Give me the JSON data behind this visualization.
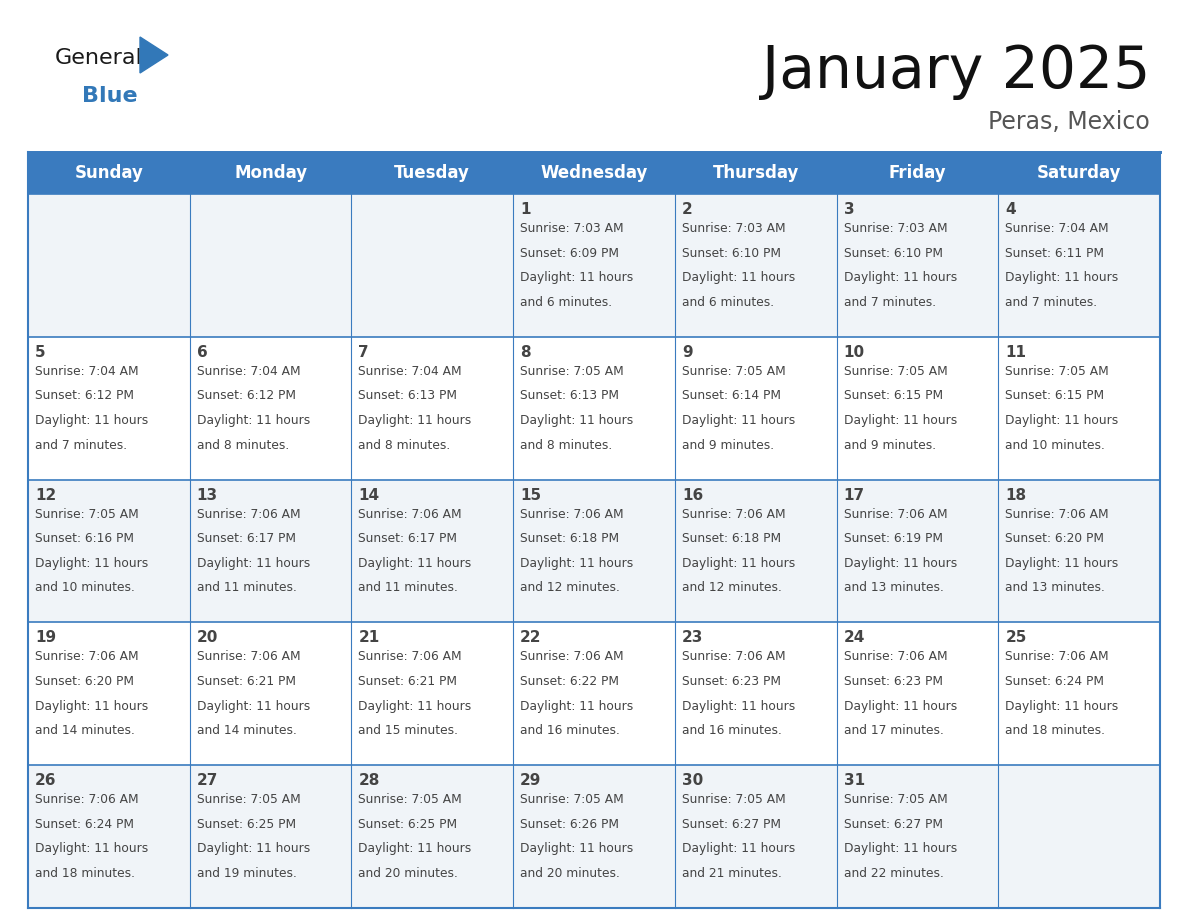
{
  "title": "January 2025",
  "subtitle": "Peras, Mexico",
  "header_color": "#3A7BBF",
  "header_text_color": "#FFFFFF",
  "header_font_size": 12,
  "day_names": [
    "Sunday",
    "Monday",
    "Tuesday",
    "Wednesday",
    "Thursday",
    "Friday",
    "Saturday"
  ],
  "title_font_size": 42,
  "subtitle_font_size": 17,
  "cell_text_color": "#444444",
  "day_number_font_size": 11,
  "info_font_size": 8.8,
  "row0_color": "#F0F4F8",
  "row1_color": "#FFFFFF",
  "border_color": "#3A7BBF",
  "logo_general_color": "#1A1A1A",
  "logo_blue_color": "#3278B8",
  "weeks": [
    {
      "days": [
        {
          "day": null,
          "info": ""
        },
        {
          "day": null,
          "info": ""
        },
        {
          "day": null,
          "info": ""
        },
        {
          "day": 1,
          "info": "Sunrise: 7:03 AM\nSunset: 6:09 PM\nDaylight: 11 hours\nand 6 minutes."
        },
        {
          "day": 2,
          "info": "Sunrise: 7:03 AM\nSunset: 6:10 PM\nDaylight: 11 hours\nand 6 minutes."
        },
        {
          "day": 3,
          "info": "Sunrise: 7:03 AM\nSunset: 6:10 PM\nDaylight: 11 hours\nand 7 minutes."
        },
        {
          "day": 4,
          "info": "Sunrise: 7:04 AM\nSunset: 6:11 PM\nDaylight: 11 hours\nand 7 minutes."
        }
      ]
    },
    {
      "days": [
        {
          "day": 5,
          "info": "Sunrise: 7:04 AM\nSunset: 6:12 PM\nDaylight: 11 hours\nand 7 minutes."
        },
        {
          "day": 6,
          "info": "Sunrise: 7:04 AM\nSunset: 6:12 PM\nDaylight: 11 hours\nand 8 minutes."
        },
        {
          "day": 7,
          "info": "Sunrise: 7:04 AM\nSunset: 6:13 PM\nDaylight: 11 hours\nand 8 minutes."
        },
        {
          "day": 8,
          "info": "Sunrise: 7:05 AM\nSunset: 6:13 PM\nDaylight: 11 hours\nand 8 minutes."
        },
        {
          "day": 9,
          "info": "Sunrise: 7:05 AM\nSunset: 6:14 PM\nDaylight: 11 hours\nand 9 minutes."
        },
        {
          "day": 10,
          "info": "Sunrise: 7:05 AM\nSunset: 6:15 PM\nDaylight: 11 hours\nand 9 minutes."
        },
        {
          "day": 11,
          "info": "Sunrise: 7:05 AM\nSunset: 6:15 PM\nDaylight: 11 hours\nand 10 minutes."
        }
      ]
    },
    {
      "days": [
        {
          "day": 12,
          "info": "Sunrise: 7:05 AM\nSunset: 6:16 PM\nDaylight: 11 hours\nand 10 minutes."
        },
        {
          "day": 13,
          "info": "Sunrise: 7:06 AM\nSunset: 6:17 PM\nDaylight: 11 hours\nand 11 minutes."
        },
        {
          "day": 14,
          "info": "Sunrise: 7:06 AM\nSunset: 6:17 PM\nDaylight: 11 hours\nand 11 minutes."
        },
        {
          "day": 15,
          "info": "Sunrise: 7:06 AM\nSunset: 6:18 PM\nDaylight: 11 hours\nand 12 minutes."
        },
        {
          "day": 16,
          "info": "Sunrise: 7:06 AM\nSunset: 6:18 PM\nDaylight: 11 hours\nand 12 minutes."
        },
        {
          "day": 17,
          "info": "Sunrise: 7:06 AM\nSunset: 6:19 PM\nDaylight: 11 hours\nand 13 minutes."
        },
        {
          "day": 18,
          "info": "Sunrise: 7:06 AM\nSunset: 6:20 PM\nDaylight: 11 hours\nand 13 minutes."
        }
      ]
    },
    {
      "days": [
        {
          "day": 19,
          "info": "Sunrise: 7:06 AM\nSunset: 6:20 PM\nDaylight: 11 hours\nand 14 minutes."
        },
        {
          "day": 20,
          "info": "Sunrise: 7:06 AM\nSunset: 6:21 PM\nDaylight: 11 hours\nand 14 minutes."
        },
        {
          "day": 21,
          "info": "Sunrise: 7:06 AM\nSunset: 6:21 PM\nDaylight: 11 hours\nand 15 minutes."
        },
        {
          "day": 22,
          "info": "Sunrise: 7:06 AM\nSunset: 6:22 PM\nDaylight: 11 hours\nand 16 minutes."
        },
        {
          "day": 23,
          "info": "Sunrise: 7:06 AM\nSunset: 6:23 PM\nDaylight: 11 hours\nand 16 minutes."
        },
        {
          "day": 24,
          "info": "Sunrise: 7:06 AM\nSunset: 6:23 PM\nDaylight: 11 hours\nand 17 minutes."
        },
        {
          "day": 25,
          "info": "Sunrise: 7:06 AM\nSunset: 6:24 PM\nDaylight: 11 hours\nand 18 minutes."
        }
      ]
    },
    {
      "days": [
        {
          "day": 26,
          "info": "Sunrise: 7:06 AM\nSunset: 6:24 PM\nDaylight: 11 hours\nand 18 minutes."
        },
        {
          "day": 27,
          "info": "Sunrise: 7:05 AM\nSunset: 6:25 PM\nDaylight: 11 hours\nand 19 minutes."
        },
        {
          "day": 28,
          "info": "Sunrise: 7:05 AM\nSunset: 6:25 PM\nDaylight: 11 hours\nand 20 minutes."
        },
        {
          "day": 29,
          "info": "Sunrise: 7:05 AM\nSunset: 6:26 PM\nDaylight: 11 hours\nand 20 minutes."
        },
        {
          "day": 30,
          "info": "Sunrise: 7:05 AM\nSunset: 6:27 PM\nDaylight: 11 hours\nand 21 minutes."
        },
        {
          "day": 31,
          "info": "Sunrise: 7:05 AM\nSunset: 6:27 PM\nDaylight: 11 hours\nand 22 minutes."
        },
        {
          "day": null,
          "info": ""
        }
      ]
    }
  ]
}
